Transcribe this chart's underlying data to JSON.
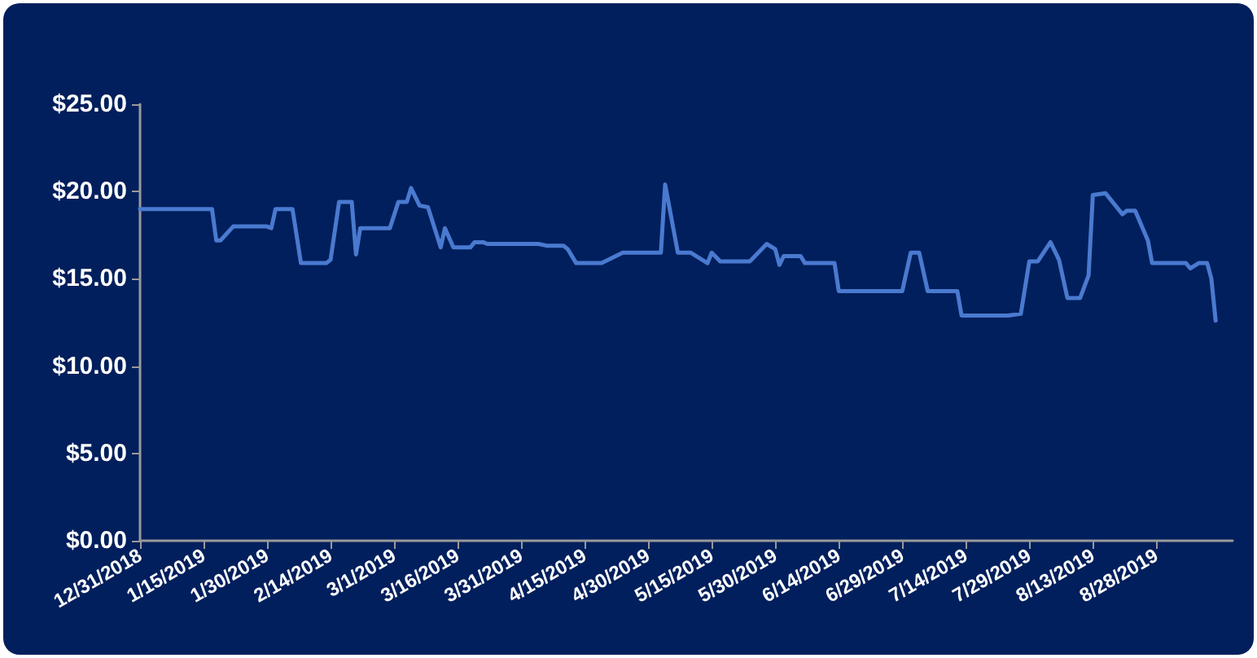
{
  "chart_data": {
    "type": "line",
    "x": [
      "2018-12-31",
      "2019-01-17",
      "2019-01-18",
      "2019-01-19",
      "2019-01-22",
      "2019-01-30",
      "2019-01-31",
      "2019-02-01",
      "2019-02-05",
      "2019-02-07",
      "2019-02-13",
      "2019-02-14",
      "2019-02-16",
      "2019-02-19",
      "2019-02-20",
      "2019-02-21",
      "2019-02-28",
      "2019-03-02",
      "2019-03-04",
      "2019-03-05",
      "2019-03-07",
      "2019-03-09",
      "2019-03-12",
      "2019-03-13",
      "2019-03-15",
      "2019-03-19",
      "2019-03-20",
      "2019-03-22",
      "2019-03-23",
      "2019-04-04",
      "2019-04-06",
      "2019-04-10",
      "2019-04-11",
      "2019-04-13",
      "2019-04-19",
      "2019-04-24",
      "2019-05-03",
      "2019-05-04",
      "2019-05-07",
      "2019-05-10",
      "2019-05-14",
      "2019-05-15",
      "2019-05-17",
      "2019-05-24",
      "2019-05-28",
      "2019-05-30",
      "2019-05-31",
      "2019-06-01",
      "2019-06-05",
      "2019-06-06",
      "2019-06-13",
      "2019-06-14",
      "2019-06-29",
      "2019-07-01",
      "2019-07-03",
      "2019-07-05",
      "2019-07-12",
      "2019-07-13",
      "2019-07-24",
      "2019-07-27",
      "2019-07-29",
      "2019-07-31",
      "2019-08-03",
      "2019-08-05",
      "2019-08-07",
      "2019-08-10",
      "2019-08-12",
      "2019-08-13",
      "2019-08-16",
      "2019-08-20",
      "2019-08-21",
      "2019-08-23",
      "2019-08-26",
      "2019-08-27",
      "2019-09-04",
      "2019-09-05",
      "2019-09-07",
      "2019-09-09",
      "2019-09-10",
      "2019-09-11"
    ],
    "series": [
      {
        "color": "#4a7ad0",
        "values": [
          19.0,
          19.0,
          17.2,
          17.2,
          18.0,
          18.0,
          17.9,
          19.0,
          19.0,
          15.9,
          15.9,
          16.1,
          19.4,
          19.4,
          16.4,
          17.9,
          17.9,
          19.4,
          19.4,
          20.2,
          19.2,
          19.1,
          16.8,
          17.9,
          16.8,
          16.8,
          17.1,
          17.1,
          17.0,
          17.0,
          16.9,
          16.9,
          16.7,
          15.9,
          15.9,
          16.5,
          16.5,
          20.4,
          16.5,
          16.5,
          15.9,
          16.5,
          16.0,
          16.0,
          17.0,
          16.7,
          15.8,
          16.3,
          16.3,
          15.9,
          15.9,
          14.3,
          14.3,
          16.5,
          16.5,
          14.3,
          14.3,
          12.9,
          12.9,
          13.0,
          16.0,
          16.0,
          17.1,
          16.1,
          13.9,
          13.9,
          15.2,
          19.8,
          19.9,
          18.7,
          18.9,
          18.9,
          17.2,
          15.9,
          15.9,
          15.6,
          15.9,
          15.9,
          15.0,
          12.6
        ]
      }
    ],
    "xlim": [
      "2018-12-31",
      "2019-09-15"
    ],
    "xticks": [
      {
        "value": "2018-12-31",
        "label": "12/31/2018"
      },
      {
        "value": "2019-01-15",
        "label": "1/15/2019"
      },
      {
        "value": "2019-01-30",
        "label": "1/30/2019"
      },
      {
        "value": "2019-02-14",
        "label": "2/14/2019"
      },
      {
        "value": "2019-03-01",
        "label": "3/1/2019"
      },
      {
        "value": "2019-03-16",
        "label": "3/16/2019"
      },
      {
        "value": "2019-03-31",
        "label": "3/31/2019"
      },
      {
        "value": "2019-04-15",
        "label": "4/15/2019"
      },
      {
        "value": "2019-04-30",
        "label": "4/30/2019"
      },
      {
        "value": "2019-05-15",
        "label": "5/15/2019"
      },
      {
        "value": "2019-05-30",
        "label": "5/30/2019"
      },
      {
        "value": "2019-06-14",
        "label": "6/14/2019"
      },
      {
        "value": "2019-06-29",
        "label": "6/29/2019"
      },
      {
        "value": "2019-07-14",
        "label": "7/14/2019"
      },
      {
        "value": "2019-07-29",
        "label": "7/29/2019"
      },
      {
        "value": "2019-08-13",
        "label": "8/13/2019"
      },
      {
        "value": "2019-08-28",
        "label": "8/28/2019"
      }
    ],
    "ylim": [
      0,
      25
    ],
    "yticks": [
      {
        "value": 0,
        "label": "$0.00"
      },
      {
        "value": 5,
        "label": "$5.00"
      },
      {
        "value": 10,
        "label": "$10.00"
      },
      {
        "value": 15,
        "label": "$15.00"
      },
      {
        "value": 20,
        "label": "$20.00"
      },
      {
        "value": 25,
        "label": "$25.00"
      }
    ],
    "grid": false,
    "marker": "none",
    "line_style": "solid"
  }
}
